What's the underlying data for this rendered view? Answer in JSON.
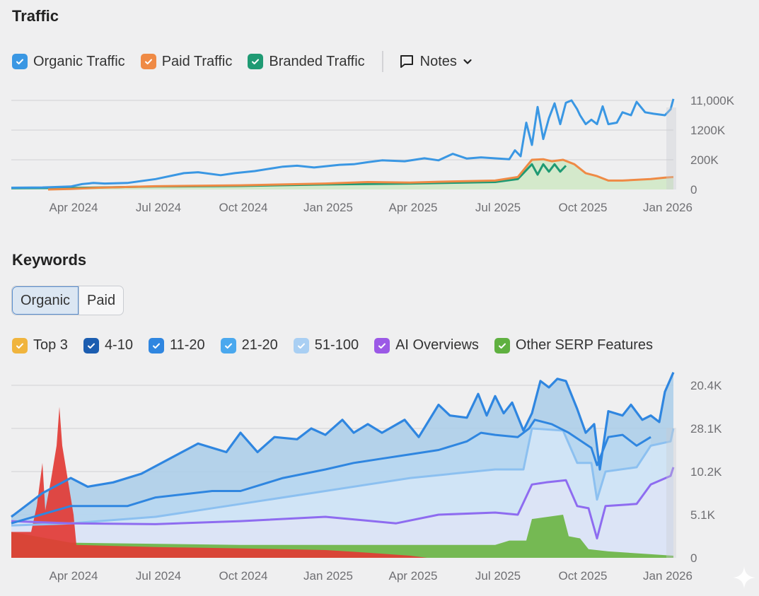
{
  "traffic": {
    "title": "Traffic",
    "legend": [
      {
        "label": "Organic Traffic",
        "color": "#3a97e3",
        "checked": true
      },
      {
        "label": "Paid Traffic",
        "color": "#ef8a45",
        "checked": true
      },
      {
        "label": "Branded Traffic",
        "color": "#1f9a73",
        "checked": true
      }
    ],
    "notes_label": "Notes"
  },
  "keywords": {
    "title": "Keywords",
    "segment": {
      "options": [
        "Organic",
        "Paid"
      ],
      "selected": "Organic"
    },
    "legend": [
      {
        "label": "Top 3",
        "color": "#f0b43d",
        "checked": true
      },
      {
        "label": "4-10",
        "color": "#1c5db0",
        "checked": true
      },
      {
        "label": "11-20",
        "color": "#2f86e0",
        "checked": true
      },
      {
        "label": "21-20",
        "color": "#4aa8ee",
        "checked": true
      },
      {
        "label": "51-100",
        "color": "#a9cff3",
        "checked": true
      },
      {
        "label": "AI Overviews",
        "color": "#9b59e6",
        "checked": true
      },
      {
        "label": "Other SERP Features",
        "color": "#5fb040",
        "checked": true
      }
    ]
  },
  "chart_data": [
    {
      "type": "line",
      "title": "Traffic",
      "xlabel": "",
      "ylabel": "",
      "x_ticks": [
        "Apr 2024",
        "Jul 2024",
        "Oct 2024",
        "Jan 2025",
        "Apr 2025",
        "Jul 2025",
        "Oct 2025",
        "Jan 2026"
      ],
      "y_ticks": [
        "0",
        "200K",
        "1200K",
        "11,000K"
      ],
      "y_unit_note": "values expressed in y-tick index units (0 = '0', 1 = '200K', 2 = '1200K', 3 = '11,000K'); x in months since Jan 2024",
      "xlim": [
        0.9,
        24.3
      ],
      "ylim": [
        0,
        3
      ],
      "grid": true,
      "legend_position": "top-left",
      "series": [
        {
          "name": "Organic Traffic",
          "color": "#3a97e3",
          "points": [
            [
              0.9,
              0.06
            ],
            [
              2,
              0.07
            ],
            [
              3,
              0.1
            ],
            [
              3.4,
              0.18
            ],
            [
              3.8,
              0.22
            ],
            [
              4.2,
              0.2
            ],
            [
              5,
              0.22
            ],
            [
              6,
              0.35
            ],
            [
              7,
              0.55
            ],
            [
              7.5,
              0.58
            ],
            [
              8.3,
              0.48
            ],
            [
              8.8,
              0.55
            ],
            [
              9.5,
              0.62
            ],
            [
              10.5,
              0.77
            ],
            [
              11,
              0.8
            ],
            [
              11.6,
              0.74
            ],
            [
              12.5,
              0.83
            ],
            [
              13,
              0.85
            ],
            [
              13.5,
              0.92
            ],
            [
              14,
              0.98
            ],
            [
              14.8,
              0.95
            ],
            [
              15.5,
              1.05
            ],
            [
              16,
              0.98
            ],
            [
              16.5,
              1.2
            ],
            [
              17,
              1.04
            ],
            [
              17.5,
              1.08
            ],
            [
              18.5,
              1.02
            ],
            [
              18.7,
              1.32
            ],
            [
              18.9,
              1.12
            ],
            [
              19.1,
              2.25
            ],
            [
              19.3,
              1.5
            ],
            [
              19.5,
              2.78
            ],
            [
              19.7,
              1.7
            ],
            [
              19.9,
              2.4
            ],
            [
              20.1,
              2.9
            ],
            [
              20.3,
              2.2
            ],
            [
              20.5,
              2.92
            ],
            [
              20.7,
              3.0
            ],
            [
              20.9,
              2.7
            ],
            [
              21.0,
              2.5
            ],
            [
              21.2,
              2.2
            ],
            [
              21.4,
              2.35
            ],
            [
              21.6,
              2.2
            ],
            [
              21.8,
              2.8
            ],
            [
              22.0,
              2.2
            ],
            [
              22.3,
              2.25
            ],
            [
              22.5,
              2.6
            ],
            [
              22.8,
              2.5
            ],
            [
              23.0,
              2.95
            ],
            [
              23.3,
              2.6
            ],
            [
              23.6,
              2.55
            ],
            [
              24.0,
              2.5
            ],
            [
              24.2,
              2.7
            ],
            [
              24.3,
              3.05
            ]
          ]
        },
        {
          "name": "Paid Traffic",
          "color": "#ef8a45",
          "points": [
            [
              2.2,
              0.0
            ],
            [
              3,
              0.02
            ],
            [
              4,
              0.06
            ],
            [
              6,
              0.11
            ],
            [
              9,
              0.14
            ],
            [
              12,
              0.2
            ],
            [
              13.5,
              0.25
            ],
            [
              15,
              0.23
            ],
            [
              16,
              0.26
            ],
            [
              18,
              0.3
            ],
            [
              18.8,
              0.42
            ],
            [
              19.3,
              1.0
            ],
            [
              19.7,
              1.02
            ],
            [
              20.0,
              0.95
            ],
            [
              20.4,
              1.0
            ],
            [
              20.8,
              0.85
            ],
            [
              21.2,
              0.55
            ],
            [
              21.6,
              0.45
            ],
            [
              22.0,
              0.3
            ],
            [
              22.5,
              0.3
            ],
            [
              23.5,
              0.35
            ],
            [
              24.0,
              0.4
            ],
            [
              24.3,
              0.42
            ]
          ]
        },
        {
          "name": "Branded Traffic",
          "color": "#1f9a73",
          "points": [
            [
              0.9,
              0.04
            ],
            [
              3,
              0.05
            ],
            [
              6,
              0.1
            ],
            [
              9,
              0.12
            ],
            [
              12,
              0.17
            ],
            [
              15,
              0.2
            ],
            [
              18,
              0.25
            ],
            [
              18.8,
              0.35
            ],
            [
              19.3,
              0.85
            ],
            [
              19.5,
              0.5
            ],
            [
              19.7,
              0.85
            ],
            [
              19.9,
              0.6
            ],
            [
              20.1,
              0.85
            ],
            [
              20.3,
              0.6
            ],
            [
              20.5,
              0.8
            ]
          ]
        }
      ]
    },
    {
      "type": "area",
      "title": "Keywords",
      "xlabel": "",
      "ylabel": "",
      "x_ticks": [
        "Apr 2024",
        "Jul 2024",
        "Oct 2024",
        "Jan 2025",
        "Apr 2025",
        "Jul 2025",
        "Oct 2025",
        "Jan 2026"
      ],
      "y_ticks": [
        "0",
        "5.1K",
        "10.2K",
        "28.1K",
        "20.4K"
      ],
      "y_unit_note": "values expressed in y-tick index units (0 = '0', 1 = '5.1K', 2 = '10.2K', 3 = '28.1K', 4 = '20.4K'); x in months since Jan 2024",
      "xlim": [
        0.9,
        24.3
      ],
      "ylim": [
        0,
        4
      ],
      "grid": true,
      "legend_position": "top-left",
      "series": [
        {
          "name": "Top 3",
          "color": "#e23b35",
          "points": [
            [
              0.9,
              0.6
            ],
            [
              1.6,
              0.6
            ],
            [
              1.8,
              1.2
            ],
            [
              2.0,
              2.2
            ],
            [
              2.1,
              1.1
            ],
            [
              2.3,
              1.8
            ],
            [
              2.5,
              2.6
            ],
            [
              2.6,
              3.5
            ],
            [
              2.7,
              2.6
            ],
            [
              2.9,
              1.8
            ],
            [
              3.1,
              1.0
            ],
            [
              3.2,
              0.3
            ],
            [
              6,
              0.25
            ],
            [
              9,
              0.22
            ],
            [
              12,
              0.18
            ],
            [
              13.5,
              0.12
            ],
            [
              15,
              0.05
            ],
            [
              15.6,
              0.0
            ]
          ]
        },
        {
          "name": "Other SERP Features",
          "color": "#5fb040",
          "points": [
            [
              0.9,
              0.6
            ],
            [
              3,
              0.35
            ],
            [
              9,
              0.3
            ],
            [
              15,
              0.3
            ],
            [
              18,
              0.3
            ],
            [
              18.5,
              0.4
            ],
            [
              19.1,
              0.4
            ],
            [
              19.3,
              0.9
            ],
            [
              20.4,
              1.0
            ],
            [
              20.6,
              0.5
            ],
            [
              21.0,
              0.45
            ],
            [
              21.3,
              0.2
            ],
            [
              22,
              0.15
            ],
            [
              24.3,
              0.05
            ]
          ]
        },
        {
          "name": "AI Overviews",
          "color": "#8e6cf0",
          "points": [
            [
              0.9,
              0.85
            ],
            [
              3,
              0.8
            ],
            [
              6,
              0.78
            ],
            [
              9,
              0.85
            ],
            [
              12,
              0.95
            ],
            [
              14.5,
              0.8
            ],
            [
              16,
              1.0
            ],
            [
              18,
              1.05
            ],
            [
              18.8,
              1.0
            ],
            [
              19.3,
              1.7
            ],
            [
              19.8,
              1.75
            ],
            [
              20.5,
              1.8
            ],
            [
              20.9,
              1.2
            ],
            [
              21.3,
              1.15
            ],
            [
              21.6,
              0.45
            ],
            [
              21.9,
              1.2
            ],
            [
              23.0,
              1.25
            ],
            [
              23.5,
              1.7
            ],
            [
              24.2,
              1.9
            ],
            [
              24.3,
              2.1
            ]
          ]
        },
        {
          "name": "51-100",
          "color": "#90c3f2",
          "points": [
            [
              0.9,
              0.75
            ],
            [
              3,
              0.8
            ],
            [
              6,
              0.95
            ],
            [
              9,
              1.25
            ],
            [
              12,
              1.55
            ],
            [
              15,
              1.85
            ],
            [
              18,
              2.05
            ],
            [
              19.0,
              2.05
            ],
            [
              19.3,
              3.0
            ],
            [
              20.4,
              2.95
            ],
            [
              20.9,
              2.2
            ],
            [
              21.4,
              2.2
            ],
            [
              21.6,
              1.35
            ],
            [
              21.9,
              2.0
            ],
            [
              23.0,
              2.1
            ],
            [
              23.5,
              2.6
            ],
            [
              24.2,
              2.7
            ],
            [
              24.3,
              3.0
            ]
          ]
        },
        {
          "name": "4-10",
          "color": "#2f86e0",
          "points": [
            [
              0.9,
              0.8
            ],
            [
              3,
              1.2
            ],
            [
              5,
              1.2
            ],
            [
              6,
              1.4
            ],
            [
              8,
              1.55
            ],
            [
              9,
              1.55
            ],
            [
              10.5,
              1.85
            ],
            [
              12,
              2.05
            ],
            [
              13,
              2.2
            ],
            [
              14,
              2.3
            ],
            [
              15,
              2.4
            ],
            [
              16,
              2.5
            ],
            [
              17,
              2.7
            ],
            [
              17.5,
              2.9
            ],
            [
              18,
              2.85
            ],
            [
              18.8,
              2.8
            ],
            [
              19.2,
              3.0
            ],
            [
              19.4,
              3.2
            ],
            [
              20,
              3.1
            ],
            [
              20.6,
              2.9
            ],
            [
              21.4,
              2.55
            ],
            [
              21.6,
              2.15
            ],
            [
              22.0,
              2.8
            ],
            [
              22.5,
              2.85
            ],
            [
              23.0,
              2.6
            ],
            [
              23.5,
              2.8
            ]
          ]
        },
        {
          "name": "11-20",
          "color": "#2f86e0",
          "points": [
            [
              0.9,
              0.95
            ],
            [
              2,
              1.5
            ],
            [
              3,
              1.85
            ],
            [
              3.6,
              1.65
            ],
            [
              4.5,
              1.75
            ],
            [
              5.5,
              1.95
            ],
            [
              6.5,
              2.3
            ],
            [
              7.5,
              2.65
            ],
            [
              8.5,
              2.45
            ],
            [
              9,
              2.9
            ],
            [
              9.6,
              2.45
            ],
            [
              10.2,
              2.8
            ],
            [
              11,
              2.75
            ],
            [
              11.5,
              3.0
            ],
            [
              12,
              2.85
            ],
            [
              12.6,
              3.2
            ],
            [
              13,
              2.9
            ],
            [
              13.5,
              3.1
            ],
            [
              14,
              2.9
            ],
            [
              14.8,
              3.2
            ],
            [
              15.3,
              2.8
            ],
            [
              16,
              3.55
            ],
            [
              16.4,
              3.3
            ],
            [
              17,
              3.25
            ],
            [
              17.4,
              3.8
            ],
            [
              17.7,
              3.3
            ],
            [
              18,
              3.75
            ],
            [
              18.3,
              3.35
            ],
            [
              18.6,
              3.6
            ],
            [
              19.0,
              2.95
            ],
            [
              19.3,
              3.35
            ],
            [
              19.6,
              4.1
            ],
            [
              19.9,
              3.95
            ],
            [
              20.2,
              4.15
            ],
            [
              20.5,
              4.1
            ],
            [
              20.9,
              3.45
            ],
            [
              21.2,
              2.9
            ],
            [
              21.5,
              3.1
            ],
            [
              21.7,
              2.05
            ],
            [
              22.0,
              3.4
            ],
            [
              22.5,
              3.3
            ],
            [
              22.8,
              3.55
            ],
            [
              23.2,
              3.2
            ],
            [
              23.5,
              3.3
            ],
            [
              23.8,
              3.15
            ],
            [
              24.0,
              3.85
            ],
            [
              24.3,
              4.3
            ]
          ]
        }
      ]
    }
  ]
}
